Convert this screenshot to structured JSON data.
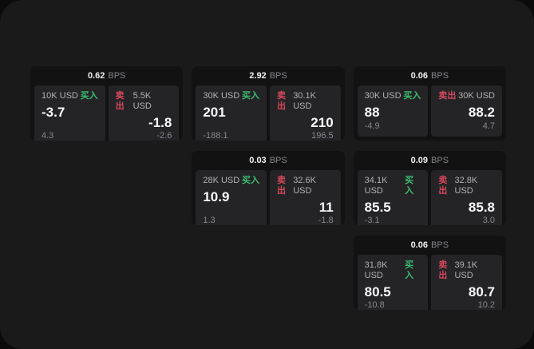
{
  "labels": {
    "bps": "BPS",
    "buy": "买入",
    "sell": "卖出"
  },
  "colors": {
    "page_outer": "#0b0b0c",
    "surface": "#1a1a1b",
    "card_bg": "#121213",
    "panel_bg": "#242426",
    "buy_green": "#3dbb71",
    "sell_red": "#d4485e"
  },
  "cards": [
    {
      "bps": "0.62",
      "buy": {
        "amount": "10K USD",
        "value": "-3.7",
        "sub": "4.3"
      },
      "sell": {
        "amount": "5.5K USD",
        "value": "-1.8",
        "sub": "-2.6"
      }
    },
    {
      "bps": "2.92",
      "buy": {
        "amount": "30K USD",
        "value": "201",
        "sub": "-188.1"
      },
      "sell": {
        "amount": "30.1K USD",
        "value": "210",
        "sub": "196.5"
      }
    },
    {
      "bps": "0.06",
      "buy": {
        "amount": "30K USD",
        "value": "88",
        "sub": "-4.9"
      },
      "sell": {
        "amount": "30K USD",
        "value": "88.2",
        "sub": "4.7"
      }
    },
    {
      "bps": "0.03",
      "buy": {
        "amount": "28K USD",
        "value": "10.9",
        "sub": "1.3"
      },
      "sell": {
        "amount": "32.6K USD",
        "value": "11",
        "sub": "-1.8"
      }
    },
    {
      "bps": "0.09",
      "buy": {
        "amount": "34.1K USD",
        "value": "85.5",
        "sub": "-3.1"
      },
      "sell": {
        "amount": "32.8K USD",
        "value": "85.8",
        "sub": "3.0"
      }
    },
    {
      "bps": "0.06",
      "buy": {
        "amount": "31.8K USD",
        "value": "80.5",
        "sub": "-10.8"
      },
      "sell": {
        "amount": "39.1K USD",
        "value": "80.7",
        "sub": "10.2"
      }
    }
  ]
}
